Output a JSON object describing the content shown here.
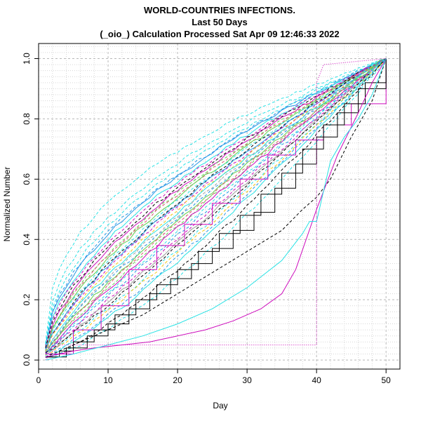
{
  "chart_data": {
    "type": "line",
    "title_lines": [
      "WORLD-COUNTRIES INFECTIONS.",
      "Last 50 Days",
      "(_oio_) Calculation Processed  Sat Apr 09 12:46:33 2022"
    ],
    "xlabel": "Day",
    "ylabel": "Normalized Number",
    "xlim": [
      0,
      52
    ],
    "ylim": [
      -0.03,
      1.05
    ],
    "x_ticks": [
      0,
      10,
      20,
      30,
      40,
      50
    ],
    "y_ticks": [
      0.0,
      0.2,
      0.4,
      0.6,
      0.8,
      1.0
    ],
    "y_tick_labels": [
      "0.0",
      "0.2",
      "0.4",
      "0.6",
      "0.8",
      "1.0"
    ],
    "grid": true,
    "legend": "none",
    "palette": [
      "#000000",
      "#DF536B",
      "#61D04F",
      "#2297E6",
      "#28E2E5",
      "#CD0BBC",
      "#F5C710",
      "#9E9E9E"
    ],
    "series": [
      {
        "style": "dashed",
        "color": "#28E2E5",
        "start": 0.06,
        "end": 1.0,
        "shape": 0.42
      },
      {
        "style": "dashed",
        "color": "#28E2E5",
        "start": 0.05,
        "end": 1.0,
        "shape": 0.48
      },
      {
        "style": "dashed",
        "color": "#28E2E5",
        "start": 0.05,
        "end": 1.0,
        "shape": 0.52
      },
      {
        "style": "dashed",
        "color": "#2297E6",
        "start": 0.05,
        "end": 1.0,
        "shape": 0.55
      },
      {
        "style": "solid",
        "color": "#2297E6",
        "start": 0.04,
        "end": 1.0,
        "shape": 0.55
      },
      {
        "style": "solid",
        "color": "#28E2E5",
        "start": 0.04,
        "end": 1.0,
        "shape": 0.58
      },
      {
        "style": "dashed",
        "color": "#CD0BBC",
        "start": 0.04,
        "end": 1.0,
        "shape": 0.6
      },
      {
        "style": "dashed",
        "color": "#000000",
        "start": 0.04,
        "end": 1.0,
        "shape": 0.62
      },
      {
        "style": "solid",
        "color": "#CD0BBC",
        "start": 0.03,
        "end": 1.0,
        "shape": 0.63
      },
      {
        "style": "dashed",
        "color": "#61D04F",
        "start": 0.03,
        "end": 1.0,
        "shape": 0.65
      },
      {
        "style": "dashed",
        "color": "#DF536B",
        "start": 0.03,
        "end": 1.0,
        "shape": 0.66
      },
      {
        "style": "solid",
        "color": "#61D04F",
        "start": 0.03,
        "end": 1.0,
        "shape": 0.68
      },
      {
        "style": "dashed",
        "color": "#28E2E5",
        "start": 0.03,
        "end": 1.0,
        "shape": 0.7
      },
      {
        "style": "dashed",
        "color": "#000000",
        "start": 0.03,
        "end": 1.0,
        "shape": 0.72
      },
      {
        "style": "solid",
        "color": "#2297E6",
        "start": 0.03,
        "end": 1.0,
        "shape": 0.73
      },
      {
        "style": "dashed",
        "color": "#CD0BBC",
        "start": 0.03,
        "end": 1.0,
        "shape": 0.75
      },
      {
        "style": "dashed",
        "color": "#F5C710",
        "start": 0.03,
        "end": 1.0,
        "shape": 0.77
      },
      {
        "style": "solid",
        "color": "#28E2E5",
        "start": 0.02,
        "end": 1.0,
        "shape": 0.78
      },
      {
        "style": "dashed",
        "color": "#9E9E9E",
        "start": 0.02,
        "end": 1.0,
        "shape": 0.8
      },
      {
        "style": "dashed",
        "color": "#2297E6",
        "start": 0.02,
        "end": 1.0,
        "shape": 0.82
      },
      {
        "style": "solid",
        "color": "#61D04F",
        "start": 0.02,
        "end": 1.0,
        "shape": 0.84
      },
      {
        "style": "dashed",
        "color": "#DF536B",
        "start": 0.02,
        "end": 1.0,
        "shape": 0.86
      },
      {
        "style": "dashed",
        "color": "#61D04F",
        "start": 0.02,
        "end": 1.0,
        "shape": 0.88
      },
      {
        "style": "solid",
        "color": "#CD0BBC",
        "start": 0.02,
        "end": 1.0,
        "shape": 0.9
      },
      {
        "style": "dashed",
        "color": "#28E2E5",
        "start": 0.02,
        "end": 1.0,
        "shape": 0.93
      },
      {
        "style": "dashed",
        "color": "#2297E6",
        "start": 0.02,
        "end": 1.0,
        "shape": 0.96
      },
      {
        "style": "dashed",
        "color": "#CD0BBC",
        "start": 0.02,
        "end": 1.0,
        "shape": 1.0
      },
      {
        "style": "solid",
        "color": "#9E9E9E",
        "start": 0.02,
        "end": 1.0,
        "shape": 1.03
      },
      {
        "style": "dashed",
        "color": "#000000",
        "start": 0.02,
        "end": 1.0,
        "shape": 1.06
      },
      {
        "style": "dashed",
        "color": "#28E2E5",
        "start": 0.02,
        "end": 1.0,
        "shape": 1.1
      },
      {
        "style": "dashed",
        "color": "#F5C710",
        "start": 0.02,
        "end": 1.0,
        "shape": 1.13
      },
      {
        "style": "dashed",
        "color": "#2297E6",
        "start": 0.01,
        "end": 1.0,
        "shape": 1.16
      },
      {
        "style": "solid",
        "color": "#28E2E5",
        "start": 0.01,
        "end": 1.0,
        "shape": 1.2
      },
      {
        "style": "dashed",
        "color": "#000000",
        "start": 0.01,
        "end": 1.0,
        "shape": 1.3
      },
      {
        "style": "dashed",
        "color": "#28E2E5",
        "start": 0.01,
        "end": 1.0,
        "shape": 1.4
      },
      {
        "style": "step",
        "color": "#CD0BBC",
        "x": [
          1,
          5,
          9,
          13,
          17,
          21,
          25,
          29,
          33,
          37,
          41,
          45,
          50
        ],
        "y": [
          0.02,
          0.1,
          0.18,
          0.3,
          0.38,
          0.45,
          0.52,
          0.6,
          0.68,
          0.73,
          0.78,
          0.85,
          1.0
        ]
      },
      {
        "style": "step",
        "color": "#000000",
        "x": [
          1,
          3,
          5,
          8,
          11,
          14,
          17,
          20,
          23,
          26,
          29,
          32,
          35,
          38,
          41,
          44,
          47,
          50
        ],
        "y": [
          0.01,
          0.03,
          0.06,
          0.1,
          0.15,
          0.2,
          0.25,
          0.3,
          0.36,
          0.42,
          0.48,
          0.55,
          0.62,
          0.7,
          0.78,
          0.85,
          0.92,
          1.0
        ]
      },
      {
        "style": "step",
        "color": "#000000",
        "x": [
          1,
          4,
          7,
          10,
          13,
          16,
          19,
          22,
          25,
          28,
          31,
          34,
          37,
          40,
          43,
          46,
          50
        ],
        "y": [
          0.01,
          0.04,
          0.08,
          0.12,
          0.17,
          0.22,
          0.27,
          0.32,
          0.37,
          0.43,
          0.49,
          0.57,
          0.65,
          0.74,
          0.82,
          0.9,
          1.0
        ]
      },
      {
        "style": "dashed",
        "color": "#000000",
        "x": [
          1,
          5,
          10,
          15,
          20,
          25,
          30,
          35,
          38,
          40,
          42,
          45,
          48,
          50
        ],
        "y": [
          0.01,
          0.05,
          0.1,
          0.15,
          0.22,
          0.29,
          0.36,
          0.43,
          0.5,
          0.54,
          0.6,
          0.74,
          0.86,
          1.0
        ]
      },
      {
        "style": "solid",
        "color": "#CD0BBC",
        "x": [
          1,
          3,
          5,
          8,
          12,
          16,
          20,
          24,
          28,
          32,
          35,
          37,
          40,
          43,
          46,
          48,
          50
        ],
        "y": [
          0.01,
          0.02,
          0.03,
          0.04,
          0.05,
          0.06,
          0.08,
          0.1,
          0.13,
          0.17,
          0.22,
          0.3,
          0.5,
          0.68,
          0.82,
          0.92,
          1.0
        ]
      },
      {
        "style": "solid",
        "color": "#28E2E5",
        "x": [
          1,
          5,
          10,
          15,
          20,
          25,
          30,
          35,
          38,
          39,
          40,
          41,
          42,
          44,
          46,
          48,
          50
        ],
        "y": [
          0.0,
          0.02,
          0.05,
          0.08,
          0.12,
          0.17,
          0.24,
          0.33,
          0.42,
          0.46,
          0.46,
          0.56,
          0.66,
          0.74,
          0.8,
          0.88,
          1.0
        ]
      },
      {
        "style": "dotted",
        "color": "#CD0BBC",
        "x": [
          1,
          2,
          3,
          40,
          40,
          41,
          50
        ],
        "y": [
          0.0,
          0.03,
          0.05,
          0.05,
          0.92,
          0.98,
          1.0
        ]
      }
    ]
  }
}
